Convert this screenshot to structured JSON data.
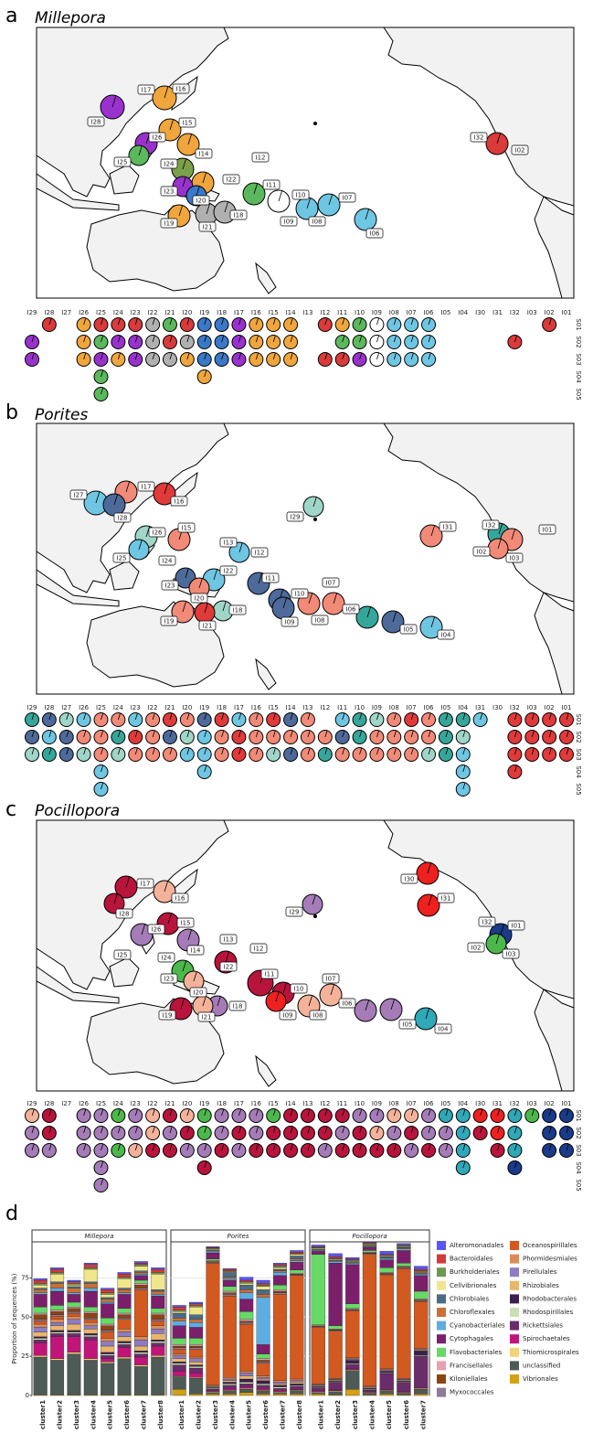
{
  "panels": [
    {
      "letter": "a",
      "title": "Millepora",
      "map_sites": [
        "I17",
        "I16",
        "I28",
        "I15",
        "I26",
        "I14",
        "I25",
        "I24",
        "I12",
        "I22",
        "I11",
        "I23",
        "I20",
        "I10",
        "I07",
        "I19",
        "I21",
        "I18",
        "I09",
        "I08",
        "I06",
        "I32",
        "I02"
      ],
      "columns": [
        "I29",
        "I28",
        "I27",
        "I26",
        "I25",
        "I24",
        "I23",
        "I22",
        "I21",
        "I20",
        "I19",
        "I18",
        "I17",
        "I16",
        "I15",
        "I14",
        "I13",
        "I12",
        "I11",
        "I10",
        "I09",
        "I08",
        "I07",
        "I06",
        "I05",
        "I04",
        "I30",
        "I31",
        "I32",
        "I03",
        "I02",
        "I01"
      ],
      "rows": [
        "S01",
        "S02",
        "S03",
        "S04",
        "S05"
      ]
    },
    {
      "letter": "b",
      "title": "Porites",
      "map_sites": [
        "I27",
        "I17",
        "I16",
        "I28",
        "I29",
        "I26",
        "I15",
        "I25",
        "I13",
        "I12",
        "I24",
        "I22",
        "I11",
        "I23",
        "I20",
        "I07",
        "I10",
        "I06",
        "I18",
        "I19",
        "I21",
        "I09",
        "I08",
        "I05",
        "I04",
        "I31",
        "I32",
        "I01",
        "I02",
        "I03"
      ],
      "columns": [
        "I29",
        "I28",
        "I27",
        "I26",
        "I25",
        "I24",
        "I23",
        "I22",
        "I21",
        "I20",
        "I19",
        "I18",
        "I17",
        "I16",
        "I15",
        "I14",
        "I13",
        "I12",
        "I11",
        "I10",
        "I09",
        "I08",
        "I07",
        "I06",
        "I05",
        "I04",
        "I31",
        "I30",
        "I32",
        "I03",
        "I02",
        "I01"
      ],
      "rows": [
        "S01",
        "S02",
        "S03",
        "S04",
        "S05"
      ]
    },
    {
      "letter": "c",
      "title": "Pocillopora",
      "map_sites": [
        "I17",
        "I16",
        "I28",
        "I29",
        "I26",
        "I15",
        "I30",
        "I31",
        "I32",
        "I01",
        "I02",
        "I03",
        "I25",
        "I14",
        "I13",
        "I12",
        "I24",
        "I22",
        "I11",
        "I23",
        "I20",
        "I07",
        "I10",
        "I06",
        "I18",
        "I19",
        "I21",
        "I09",
        "I08",
        "I05",
        "I04"
      ],
      "columns": [
        "I29",
        "I28",
        "I27",
        "I26",
        "I25",
        "I24",
        "I23",
        "I22",
        "I21",
        "I20",
        "I19",
        "I18",
        "I17",
        "I16",
        "I15",
        "I14",
        "I13",
        "I12",
        "I11",
        "I10",
        "I09",
        "I08",
        "I07",
        "I06",
        "I05",
        "I04",
        "I30",
        "I31",
        "I32",
        "I03",
        "I02",
        "I01"
      ],
      "rows": [
        "S01",
        "S02",
        "S03",
        "S04",
        "S05"
      ]
    }
  ],
  "chart_data": {
    "type": "bar",
    "stacked": true,
    "letter": "d",
    "y_label": "Proportion of sequences (%)",
    "ylim": [
      0,
      98
    ],
    "yticks": [
      0,
      25,
      50,
      75
    ],
    "grid": true,
    "series": [
      {
        "name": "Alteromonadales",
        "color": "#5a55f5"
      },
      {
        "name": "Bacteroidales",
        "color": "#d43a3a"
      },
      {
        "name": "Burkholderiales",
        "color": "#6b9a4f"
      },
      {
        "name": "Cellvibrionales",
        "color": "#f0e68c"
      },
      {
        "name": "Chlorobiales",
        "color": "#4a6b8a"
      },
      {
        "name": "Chloroflexales",
        "color": "#c87137"
      },
      {
        "name": "Cyanobacteriales",
        "color": "#5dade2"
      },
      {
        "name": "Cytophagales",
        "color": "#7b1f6b"
      },
      {
        "name": "Flavobacteriales",
        "color": "#66d966"
      },
      {
        "name": "Francisellales",
        "color": "#e8a0b0"
      },
      {
        "name": "Kiloniellales",
        "color": "#8b4513"
      },
      {
        "name": "Myxococcales",
        "color": "#8c7b9a"
      },
      {
        "name": "Oceanospirillales",
        "color": "#d2591f"
      },
      {
        "name": "Phormidesmiales",
        "color": "#d88c5a"
      },
      {
        "name": "Pirellulales",
        "color": "#8e7cc3"
      },
      {
        "name": "Rhizobiales",
        "color": "#e8b56c"
      },
      {
        "name": "Rhodobacterales",
        "color": "#3b1f4f"
      },
      {
        "name": "Rhodospirillales",
        "color": "#c9dfb8"
      },
      {
        "name": "Rickettsiales",
        "color": "#6a2d6a"
      },
      {
        "name": "Spirochaetales",
        "color": "#c0167a"
      },
      {
        "name": "Thiomicrospirales",
        "color": "#f3d27a"
      },
      {
        "name": "unclassified",
        "color": "#4d5a55"
      },
      {
        "name": "Vibrionales",
        "color": "#d4a017"
      }
    ],
    "facets": [
      {
        "title": "Millepora",
        "categories": [
          "cluster1",
          "cluster2",
          "cluster3",
          "cluster4",
          "cluster5",
          "cluster6",
          "cluster7",
          "cluster8"
        ],
        "category_colors": [
          "#e03030",
          "#f0a030",
          "#3cb043",
          "#40c0d0",
          "#3050c0",
          "#9932cc",
          "#a0a0a0",
          "#000000"
        ],
        "values": [
          [
            1,
            1,
            1,
            1,
            1,
            1,
            1,
            1
          ],
          [
            2,
            2,
            1,
            2,
            2,
            2,
            1,
            2
          ],
          [
            1,
            1,
            1,
            1,
            1,
            1,
            1,
            1
          ],
          [
            2,
            5,
            1,
            8,
            2,
            6,
            3,
            10
          ],
          [
            1,
            1,
            1,
            1,
            1,
            1,
            1,
            1
          ],
          [
            2,
            3,
            3,
            3,
            2,
            2,
            1,
            2
          ],
          [
            1,
            2,
            1,
            2,
            1,
            1,
            1,
            1
          ],
          [
            8,
            9,
            5,
            10,
            9,
            9,
            3,
            8
          ],
          [
            4,
            3,
            3,
            3,
            4,
            3,
            2,
            3
          ],
          [
            1,
            1,
            1,
            1,
            1,
            1,
            1,
            1
          ],
          [
            3,
            2,
            2,
            3,
            3,
            2,
            2,
            3
          ],
          [
            1,
            1,
            1,
            1,
            1,
            1,
            1,
            1
          ],
          [
            2,
            2,
            2,
            2,
            4,
            6,
            30,
            3
          ],
          [
            2,
            2,
            2,
            2,
            2,
            2,
            2,
            2
          ],
          [
            3,
            2,
            3,
            2,
            3,
            3,
            4,
            3
          ],
          [
            3,
            3,
            4,
            3,
            4,
            3,
            3,
            4
          ],
          [
            1,
            1,
            1,
            1,
            1,
            1,
            1,
            1
          ],
          [
            1,
            1,
            1,
            1,
            1,
            1,
            1,
            1
          ],
          [
            2,
            2,
            2,
            2,
            2,
            2,
            2,
            2
          ],
          [
            8,
            14,
            10,
            12,
            2,
            6,
            5,
            6
          ],
          [
            1,
            1,
            1,
            1,
            1,
            1,
            1,
            1
          ],
          [
            24,
            22,
            26,
            22,
            20,
            23,
            18,
            24
          ],
          [
            0.5,
            0.5,
            0.5,
            0.5,
            0.5,
            0.5,
            0.5,
            0.5
          ]
        ]
      },
      {
        "title": "Porites",
        "categories": [
          "cluster1",
          "cluster2",
          "cluster3",
          "cluster4",
          "cluster5",
          "cluster6",
          "cluster7",
          "cluster8"
        ],
        "category_colors": [
          "#e03030",
          "#30b0c8",
          "#20a090",
          "#203080",
          "#f08a70",
          "#5060a0",
          "#80c8c0",
          "#e01020"
        ],
        "values": [
          [
            1,
            1,
            0.5,
            0.5,
            2,
            2,
            1,
            1
          ],
          [
            2,
            1,
            0.5,
            1,
            1,
            1,
            1,
            1
          ],
          [
            1,
            1,
            0.5,
            0.5,
            1,
            1,
            1,
            0.5
          ],
          [
            1,
            5,
            0.5,
            0.5,
            1,
            2,
            1,
            1
          ],
          [
            3,
            3,
            0.5,
            3,
            3,
            3,
            1,
            2
          ],
          [
            2,
            2,
            0.5,
            1,
            2,
            2,
            1,
            1
          ],
          [
            3,
            3,
            1,
            1,
            4,
            30,
            2,
            1
          ],
          [
            8,
            7,
            4,
            4,
            8,
            6,
            6,
            5
          ],
          [
            4,
            4,
            1,
            3,
            5,
            3,
            3,
            2
          ],
          [
            1,
            1,
            0.5,
            1,
            1,
            1,
            1,
            0.5
          ],
          [
            1,
            1,
            0.5,
            1,
            1,
            1,
            1,
            0.5
          ],
          [
            1,
            1,
            0.5,
            1,
            1,
            1,
            1,
            0.5
          ],
          [
            3,
            5,
            78,
            52,
            30,
            8,
            55,
            66
          ],
          [
            1,
            1,
            0.5,
            1,
            1,
            1,
            1,
            1
          ],
          [
            2,
            2,
            0.5,
            1,
            2,
            1,
            1,
            1
          ],
          [
            2,
            2,
            0.5,
            1,
            2,
            1,
            1,
            1
          ],
          [
            1,
            1,
            0.5,
            1,
            2,
            2,
            1,
            1
          ],
          [
            1,
            1,
            0.5,
            1,
            1,
            1,
            1,
            0.5
          ],
          [
            4,
            3,
            1,
            2,
            2,
            2,
            1,
            2
          ],
          [
            3,
            3,
            0.5,
            1,
            1,
            1,
            1,
            0.5
          ],
          [
            0.5,
            0.5,
            0.5,
            0.5,
            0.5,
            0.5,
            0.5,
            0.5
          ],
          [
            8,
            10,
            1,
            2,
            2,
            2,
            1,
            2
          ],
          [
            4,
            1,
            1,
            1,
            2,
            1,
            1,
            1
          ]
        ]
      },
      {
        "title": "Pocillopora",
        "categories": [
          "cluster1",
          "cluster2",
          "cluster3",
          "cluster4",
          "cluster5",
          "cluster6",
          "cluster7"
        ],
        "category_colors": [
          "#1a3a8a",
          "#e03030",
          "#3cb043",
          "#2050c0",
          "#9b6ab0",
          "#f08a70",
          "#c01040"
        ],
        "values": [
          [
            1,
            2,
            1,
            0.5,
            2,
            1,
            2
          ],
          [
            0.5,
            1,
            0.5,
            0.5,
            0.5,
            0.5,
            1
          ],
          [
            0.5,
            0.5,
            0.5,
            0.5,
            0.5,
            0.5,
            0.5
          ],
          [
            0.5,
            0.5,
            0.5,
            0.5,
            0.5,
            0.5,
            0.5
          ],
          [
            0.5,
            0.5,
            0.5,
            0.5,
            0.5,
            0.5,
            0.5
          ],
          [
            0.5,
            0.5,
            0.5,
            0.5,
            0.5,
            0.5,
            0.5
          ],
          [
            0.5,
            1,
            1,
            0.5,
            1,
            1,
            1
          ],
          [
            2,
            40,
            25,
            2,
            5,
            8,
            10
          ],
          [
            45,
            2,
            3,
            1,
            3,
            2,
            5
          ],
          [
            0.5,
            0.5,
            0.5,
            0.5,
            0.5,
            0.5,
            0.5
          ],
          [
            0.5,
            0.5,
            0.5,
            0.5,
            0.5,
            0.5,
            0.5
          ],
          [
            0.5,
            0.5,
            0.5,
            0.5,
            0.5,
            0.5,
            0.5
          ],
          [
            36,
            30,
            30,
            84,
            60,
            70,
            30
          ],
          [
            0.5,
            0.5,
            0.5,
            0.5,
            0.5,
            0.5,
            0.5
          ],
          [
            0.5,
            0.5,
            0.5,
            0.5,
            0.5,
            0.5,
            0.5
          ],
          [
            0.5,
            0.5,
            0.5,
            0.5,
            0.5,
            0.5,
            0.5
          ],
          [
            0.5,
            0.5,
            2,
            0.5,
            1,
            0.5,
            3
          ],
          [
            0.5,
            0.5,
            0.5,
            0.5,
            0.5,
            0.5,
            0.5
          ],
          [
            2,
            5,
            3,
            1,
            10,
            6,
            20
          ],
          [
            0.5,
            0.5,
            0.5,
            0.5,
            0.5,
            0.5,
            0.5
          ],
          [
            0.5,
            0.5,
            0.5,
            0.5,
            0.5,
            0.5,
            0.5
          ],
          [
            1,
            2,
            12,
            1,
            2,
            1,
            3
          ],
          [
            1,
            0.5,
            4,
            0.5,
            1,
            0.5,
            1
          ]
        ]
      }
    ]
  }
}
